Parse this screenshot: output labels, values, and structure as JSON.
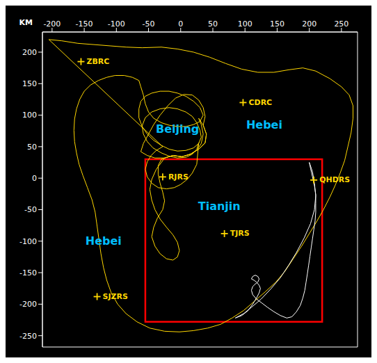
{
  "chart_data": {
    "type": "map",
    "xlabel": "KM",
    "xlim": [
      -215,
      275
    ],
    "ylim": [
      -268,
      232
    ],
    "xticks": [
      -200,
      -150,
      -100,
      -50,
      0,
      50,
      100,
      150,
      200,
      250
    ],
    "yticks": [
      -250,
      -200,
      -150,
      -100,
      -50,
      0,
      50,
      100,
      150,
      200
    ],
    "grid": false,
    "series": [
      {
        "type": "line",
        "color": "#FFD700",
        "points": [
          [
            -205,
            220
          ],
          [
            -185,
            218
          ],
          [
            -160,
            214
          ],
          [
            -135,
            212
          ],
          [
            -110,
            210
          ],
          [
            -85,
            208
          ],
          [
            -60,
            207
          ],
          [
            -30,
            208
          ],
          [
            -5,
            205
          ],
          [
            20,
            200
          ],
          [
            45,
            192
          ],
          [
            70,
            182
          ],
          [
            95,
            173
          ],
          [
            120,
            168
          ],
          [
            145,
            168
          ],
          [
            168,
            172
          ],
          [
            190,
            175
          ],
          [
            210,
            170
          ],
          [
            232,
            158
          ],
          [
            250,
            145
          ],
          [
            262,
            132
          ],
          [
            268,
            115
          ],
          [
            268,
            95
          ],
          [
            265,
            72
          ],
          [
            260,
            50
          ],
          [
            255,
            28
          ],
          [
            248,
            8
          ],
          [
            240,
            -12
          ],
          [
            232,
            -30
          ],
          [
            222,
            -50
          ],
          [
            212,
            -68
          ],
          [
            200,
            -88
          ],
          [
            188,
            -108
          ],
          [
            175,
            -128
          ],
          [
            162,
            -148
          ],
          [
            148,
            -165
          ],
          [
            132,
            -180
          ],
          [
            115,
            -195
          ],
          [
            98,
            -210
          ],
          [
            80,
            -222
          ],
          [
            62,
            -232
          ],
          [
            42,
            -238
          ],
          [
            20,
            -242
          ],
          [
            -2,
            -244
          ],
          [
            -25,
            -243
          ],
          [
            -48,
            -238
          ],
          [
            -68,
            -228
          ],
          [
            -85,
            -215
          ],
          [
            -98,
            -200
          ],
          [
            -108,
            -182
          ],
          [
            -115,
            -162
          ],
          [
            -120,
            -142
          ],
          [
            -124,
            -120
          ],
          [
            -127,
            -98
          ],
          [
            -130,
            -76
          ],
          [
            -133,
            -54
          ],
          [
            -138,
            -34
          ],
          [
            -145,
            -15
          ],
          [
            -152,
            4
          ],
          [
            -158,
            22
          ],
          [
            -162,
            40
          ],
          [
            -165,
            58
          ],
          [
            -166,
            76
          ],
          [
            -165,
            94
          ],
          [
            -162,
            110
          ],
          [
            -157,
            125
          ],
          [
            -150,
            138
          ],
          [
            -140,
            148
          ],
          [
            -128,
            155
          ],
          [
            -115,
            160
          ],
          [
            -102,
            163
          ],
          [
            -88,
            163
          ],
          [
            -75,
            160
          ],
          [
            -65,
            155
          ],
          [
            -62,
            145
          ],
          [
            -58,
            132
          ],
          [
            -55,
            118
          ],
          [
            -50,
            105
          ],
          [
            -42,
            95
          ],
          [
            -30,
            88
          ],
          [
            -18,
            84
          ],
          [
            -5,
            82
          ],
          [
            8,
            82
          ],
          [
            20,
            85
          ],
          [
            30,
            90
          ],
          [
            35,
            100
          ],
          [
            30,
            112
          ],
          [
            20,
            122
          ],
          [
            8,
            130
          ],
          [
            -5,
            135
          ],
          [
            -18,
            138
          ],
          [
            -32,
            138
          ],
          [
            -45,
            135
          ],
          [
            -55,
            130
          ],
          [
            -62,
            122
          ],
          [
            -65,
            110
          ],
          [
            -65,
            96
          ],
          [
            -60,
            82
          ],
          [
            -52,
            70
          ],
          [
            -42,
            60
          ],
          [
            -30,
            52
          ],
          [
            -18,
            46
          ],
          [
            -5,
            43
          ],
          [
            8,
            44
          ],
          [
            20,
            48
          ],
          [
            28,
            55
          ],
          [
            32,
            65
          ],
          [
            30,
            76
          ],
          [
            25,
            88
          ],
          [
            18,
            98
          ],
          [
            8,
            105
          ],
          [
            -5,
            110
          ],
          [
            -18,
            112
          ],
          [
            -32,
            110
          ],
          [
            -45,
            105
          ],
          [
            -55,
            96
          ],
          [
            -60,
            83
          ],
          [
            -58,
            70
          ],
          [
            -52,
            58
          ],
          [
            -43,
            48
          ],
          [
            -30,
            40
          ],
          [
            -18,
            35
          ],
          [
            -5,
            32
          ],
          [
            8,
            33
          ],
          [
            18,
            38
          ],
          [
            25,
            46
          ],
          [
            28,
            56
          ],
          [
            25,
            22
          ],
          [
            18,
            8
          ],
          [
            10,
            -2
          ],
          [
            0,
            -10
          ],
          [
            -10,
            -15
          ],
          [
            -22,
            -17
          ],
          [
            -35,
            -15
          ],
          [
            -45,
            -8
          ],
          [
            -52,
            2
          ],
          [
            -55,
            14
          ],
          [
            -52,
            26
          ],
          [
            -46,
            36
          ],
          [
            -38,
            44
          ],
          [
            -28,
            50
          ],
          [
            -205,
            220
          ]
        ]
      },
      {
        "type": "line",
        "color": "#FFD700",
        "points": [
          [
            -62,
            42
          ],
          [
            -58,
            55
          ],
          [
            -50,
            70
          ],
          [
            -42,
            85
          ],
          [
            -32,
            100
          ],
          [
            -20,
            115
          ],
          [
            -8,
            127
          ],
          [
            5,
            133
          ],
          [
            18,
            132
          ],
          [
            28,
            124
          ],
          [
            35,
            112
          ],
          [
            38,
            98
          ],
          [
            35,
            84
          ],
          [
            40,
            70
          ],
          [
            38,
            56
          ],
          [
            28,
            46
          ],
          [
            15,
            38
          ],
          [
            2,
            34
          ],
          [
            -12,
            36
          ],
          [
            -25,
            32
          ],
          [
            -40,
            32
          ],
          [
            -52,
            36
          ],
          [
            -62,
            42
          ]
        ]
      },
      {
        "type": "line",
        "color": "#FFD700",
        "points": [
          [
            -25,
            32
          ],
          [
            -12,
            36
          ],
          [
            2,
            34
          ],
          [
            15,
            38
          ],
          [
            28,
            46
          ],
          [
            38,
            56
          ],
          [
            40,
            70
          ],
          [
            35,
            84
          ],
          [
            28,
            95
          ],
          [
            32,
            85
          ],
          [
            35,
            70
          ],
          [
            32,
            55
          ],
          [
            25,
            44
          ],
          [
            15,
            38
          ],
          [
            2,
            34
          ],
          [
            -12,
            36
          ],
          [
            -25,
            32
          ],
          [
            -38,
            14
          ],
          [
            -45,
            -2
          ],
          [
            -48,
            -18
          ],
          [
            -45,
            -35
          ],
          [
            -40,
            -50
          ],
          [
            -32,
            -65
          ],
          [
            -22,
            -78
          ],
          [
            -12,
            -90
          ],
          [
            -5,
            -102
          ],
          [
            -2,
            -115
          ],
          [
            -5,
            -125
          ],
          [
            -12,
            -130
          ],
          [
            -22,
            -128
          ],
          [
            -32,
            -120
          ],
          [
            -40,
            -108
          ],
          [
            -45,
            -93
          ],
          [
            -42,
            -78
          ],
          [
            -36,
            -63
          ],
          [
            -28,
            -50
          ],
          [
            -25,
            -36
          ],
          [
            -28,
            -22
          ],
          [
            -32,
            -8
          ],
          [
            -35,
            6
          ],
          [
            -35,
            20
          ],
          [
            -30,
            30
          ],
          [
            -25,
            32
          ]
        ]
      },
      {
        "type": "line",
        "color": "#FFFFFF",
        "points": [
          [
            200,
            25
          ],
          [
            205,
            10
          ],
          [
            208,
            -8
          ],
          [
            210,
            -28
          ],
          [
            208,
            -50
          ],
          [
            202,
            -72
          ],
          [
            192,
            -95
          ],
          [
            180,
            -118
          ],
          [
            168,
            -138
          ],
          [
            155,
            -158
          ],
          [
            140,
            -176
          ],
          [
            125,
            -192
          ],
          [
            110,
            -205
          ],
          [
            98,
            -215
          ],
          [
            85,
            -222
          ],
          [
            95,
            -218
          ],
          [
            105,
            -210
          ],
          [
            112,
            -200
          ],
          [
            118,
            -190
          ],
          [
            122,
            -182
          ],
          [
            124,
            -175
          ],
          [
            122,
            -170
          ],
          [
            118,
            -165
          ],
          [
            114,
            -162
          ],
          [
            110,
            -160
          ],
          [
            112,
            -156
          ],
          [
            116,
            -154
          ],
          [
            120,
            -156
          ],
          [
            122,
            -160
          ],
          [
            120,
            -165
          ],
          [
            116,
            -168
          ],
          [
            112,
            -172
          ],
          [
            110,
            -178
          ],
          [
            112,
            -185
          ],
          [
            118,
            -192
          ],
          [
            126,
            -198
          ],
          [
            135,
            -205
          ],
          [
            145,
            -212
          ],
          [
            155,
            -218
          ],
          [
            165,
            -222
          ],
          [
            173,
            -220
          ],
          [
            180,
            -212
          ],
          [
            186,
            -202
          ],
          [
            190,
            -190
          ],
          [
            193,
            -178
          ],
          [
            195,
            -165
          ],
          [
            197,
            -152
          ],
          [
            199,
            -138
          ],
          [
            201,
            -124
          ],
          [
            203,
            -110
          ],
          [
            205,
            -96
          ],
          [
            207,
            -82
          ],
          [
            209,
            -68
          ],
          [
            210,
            -54
          ],
          [
            210,
            -40
          ],
          [
            210,
            -26
          ],
          [
            208,
            -12
          ],
          [
            205,
            2
          ],
          [
            202,
            15
          ],
          [
            200,
            25
          ]
        ]
      },
      {
        "type": "scatter",
        "marker": "plus",
        "color": "#FFD700",
        "x": [
          -155,
          97,
          -28,
          207,
          68,
          -130
        ],
        "y": [
          185,
          120,
          2,
          -3,
          -88,
          -188
        ],
        "labels": [
          "ZBRC",
          "CDRC",
          "RJRS",
          "QHDRS",
          "TJRS",
          "SJZRS"
        ]
      }
    ],
    "boxes": [
      {
        "color": "#FF0000",
        "x": [
          -55,
          220
        ],
        "y": [
          -228,
          30
        ]
      }
    ],
    "annotations": [
      {
        "text": "Beijing",
        "x": -5,
        "y": 78,
        "color": "#00BFFF"
      },
      {
        "text": "Hebei",
        "x": 130,
        "y": 85,
        "color": "#00BFFF"
      },
      {
        "text": "Tianjin",
        "x": 60,
        "y": -45,
        "color": "#00BFFF"
      },
      {
        "text": "Hebei",
        "x": -120,
        "y": -100,
        "color": "#00BFFF"
      }
    ]
  }
}
